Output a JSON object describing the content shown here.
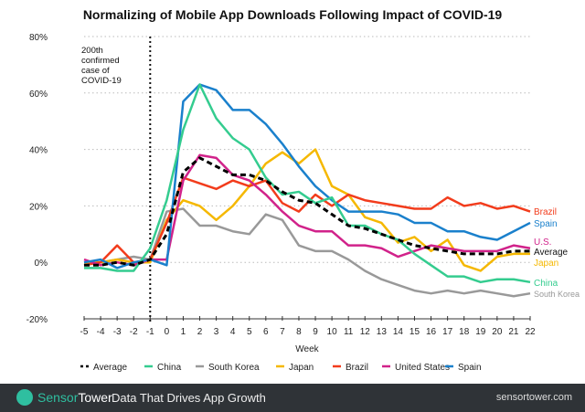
{
  "chart_data": {
    "type": "line",
    "title": "Normalizing of Mobile App Downloads Following Impact of COVID-19",
    "xlabel": "Week",
    "ylabel": "",
    "x": [
      -5,
      -4,
      -3,
      -2,
      -1,
      0,
      1,
      2,
      3,
      4,
      5,
      6,
      7,
      8,
      9,
      10,
      11,
      12,
      13,
      14,
      15,
      16,
      17,
      18,
      19,
      20,
      21,
      22
    ],
    "xlim": [
      -5,
      22
    ],
    "ylim": [
      -20,
      80
    ],
    "yticks": [
      -20,
      0,
      20,
      40,
      60,
      80
    ],
    "ytick_labels": [
      "-20%",
      "0%",
      "20%",
      "40%",
      "60%",
      "80%"
    ],
    "grid": "horizontal dotted",
    "legend_placement": "bottom",
    "annotation": {
      "x": -1,
      "text": [
        "200th",
        "confirmed",
        "case of",
        "COVID-19"
      ]
    },
    "series": [
      {
        "name": "Average",
        "end_label": "Average",
        "color": "#000000",
        "dashed": true,
        "values": [
          -1,
          -1,
          0,
          -1,
          1,
          10,
          32,
          37,
          34,
          31,
          31,
          29,
          25,
          22,
          21,
          17,
          13,
          12,
          10,
          8,
          6,
          5,
          4,
          3,
          3,
          3,
          4,
          4
        ]
      },
      {
        "name": "China",
        "end_label": "China",
        "color": "#34cc8f",
        "values": [
          -2,
          -2,
          -3,
          -3,
          5,
          22,
          47,
          63,
          51,
          44,
          40,
          30,
          24,
          25,
          21,
          23,
          13,
          13,
          10,
          8,
          3,
          -1,
          -5,
          -5,
          -7,
          -6,
          -6,
          -7
        ]
      },
      {
        "name": "South Korea",
        "end_label": "South Korea",
        "color": "#999999",
        "values": [
          0,
          0,
          1,
          2,
          1,
          18,
          19,
          13,
          13,
          11,
          10,
          17,
          15,
          6,
          4,
          4,
          1,
          -3,
          -6,
          -8,
          -10,
          -11,
          -10,
          -11,
          -10,
          -11,
          -12,
          -11
        ]
      },
      {
        "name": "Japan",
        "end_label": "Japan",
        "color": "#f5b800",
        "values": [
          0,
          0,
          1,
          0,
          0,
          15,
          22,
          20,
          15,
          20,
          27,
          35,
          39,
          35,
          40,
          27,
          24,
          16,
          14,
          7,
          9,
          4,
          8,
          -1,
          -3,
          2,
          3,
          3
        ]
      },
      {
        "name": "Brazil",
        "end_label": "Brazil",
        "color": "#f23c1c",
        "values": [
          -1,
          0,
          6,
          0,
          1,
          14,
          30,
          28,
          26,
          29,
          27,
          29,
          21,
          18,
          24,
          20,
          24,
          22,
          21,
          20,
          19,
          19,
          23,
          20,
          21,
          19,
          20,
          18
        ]
      },
      {
        "name": "United States",
        "end_label": "U.S.",
        "color": "#d1228a",
        "values": [
          1,
          -1,
          0,
          -1,
          1,
          1,
          29,
          38,
          37,
          31,
          29,
          24,
          18,
          13,
          11,
          11,
          6,
          6,
          5,
          2,
          4,
          6,
          5,
          4,
          4,
          4,
          6,
          5
        ]
      },
      {
        "name": "Spain",
        "end_label": "Spain",
        "color": "#1a80cc",
        "values": [
          0,
          1,
          -2,
          0,
          1,
          -1,
          57,
          63,
          61,
          54,
          54,
          49,
          42,
          34,
          27,
          22,
          18,
          18,
          18,
          17,
          14,
          14,
          11,
          11,
          9,
          8,
          11,
          14
        ]
      }
    ]
  },
  "footer": {
    "brand_sensor": "Sensor",
    "brand_tower": "Tower",
    "tagline": "Data That Drives App Growth",
    "site": "sensortower.com"
  }
}
